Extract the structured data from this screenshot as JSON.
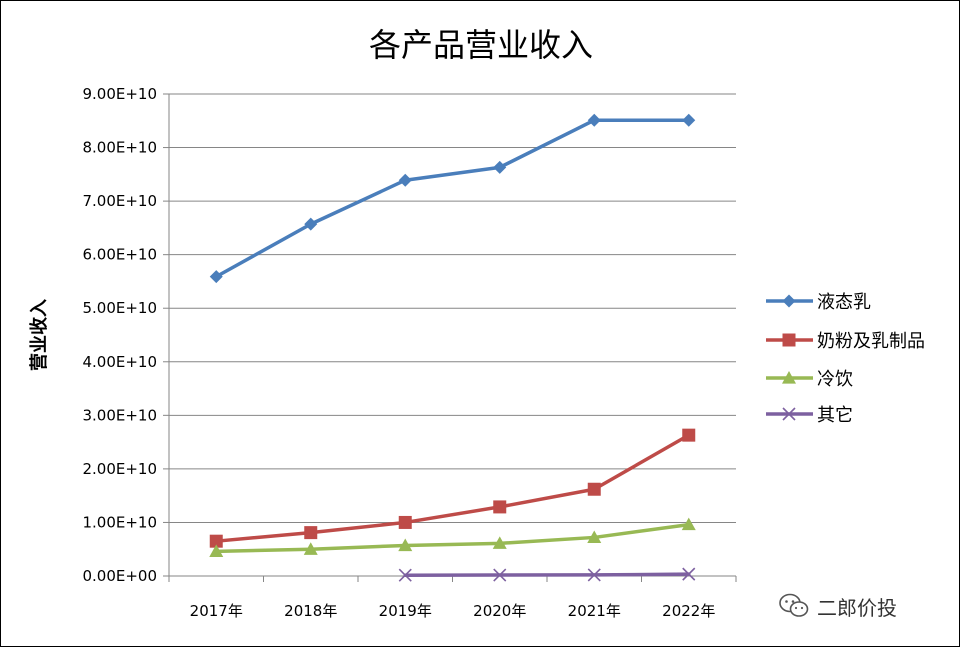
{
  "chart_data": {
    "type": "line",
    "title": "各产品营业收入",
    "xlabel": "",
    "ylabel": "营业收入",
    "categories": [
      "2017年",
      "2018年",
      "2019年",
      "2020年",
      "2021年",
      "2022年"
    ],
    "ylim": [
      0,
      90000000000
    ],
    "yticks": [
      0,
      10000000000,
      20000000000,
      30000000000,
      40000000000,
      50000000000,
      60000000000,
      70000000000,
      80000000000,
      90000000000
    ],
    "ytick_labels": [
      "0.00E+00",
      "1.00E+10",
      "2.00E+10",
      "3.00E+10",
      "4.00E+10",
      "5.00E+10",
      "6.00E+10",
      "7.00E+10",
      "8.00E+10",
      "9.00E+10"
    ],
    "grid": "horizontal",
    "legend_position": "right",
    "series": [
      {
        "name": "液态乳",
        "color": "#4a7ebb",
        "marker": "diamond",
        "values": [
          55900000000,
          65700000000,
          73900000000,
          76300000000,
          85100000000,
          85100000000
        ]
      },
      {
        "name": "奶粉及乳制品",
        "color": "#be4b48",
        "marker": "square",
        "values": [
          6500000000,
          8100000000,
          10000000000,
          12900000000,
          16200000000,
          26300000000
        ]
      },
      {
        "name": "冷饮",
        "color": "#98b954",
        "marker": "triangle",
        "values": [
          4600000000,
          5000000000,
          5700000000,
          6100000000,
          7200000000,
          9600000000
        ]
      },
      {
        "name": "其它",
        "color": "#7d60a0",
        "marker": "x",
        "values": [
          null,
          null,
          150000000,
          180000000,
          200000000,
          350000000
        ]
      }
    ]
  },
  "watermark": {
    "text": "二郎价投",
    "icon": "wechat-icon"
  }
}
